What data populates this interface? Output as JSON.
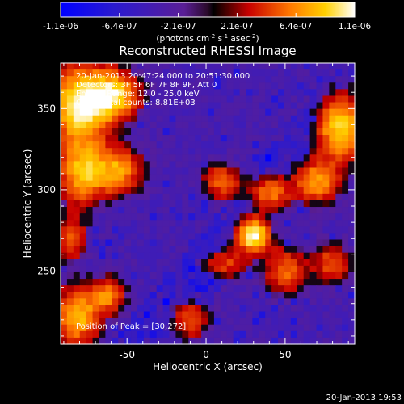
{
  "chart_data": {
    "type": "heatmap",
    "title": "Reconstructed RHESSI Image",
    "xlabel": "Heliocentric X (arcsec)",
    "ylabel": "Heliocentric Y (arcsec)",
    "xlim": [
      -92,
      94
    ],
    "ylim": [
      205,
      378
    ],
    "x_ticks": [
      -50,
      0,
      50
    ],
    "y_ticks": [
      250,
      300,
      350
    ],
    "colorbar": {
      "min": -1.1e-06,
      "max": 1.1e-06,
      "tick_labels": [
        "-1.1e-06",
        "-6.4e-07",
        "-2.1e-07",
        "2.1e-07",
        "6.4e-07",
        "1.1e-06"
      ],
      "unit_label_parts": [
        "(photons cm",
        "-2",
        " s",
        "-1",
        " asec",
        "-2",
        ")"
      ]
    },
    "info_lines": [
      "20-Jan-2013 20:47:24.000 to 20:51:30.000",
      "Detectors: 3F 5F 6F 7F 8F 9F, Att 0",
      "Energy Range: 12.0 - 25.0 keV",
      "Clean    Total counts: 8.81E+03"
    ],
    "peak_label": "Position of Peak = [30,272]",
    "peak_position": [
      30,
      272
    ],
    "footer_timestamp": "20-Jan-2013 19:53",
    "source_centers": [
      {
        "x": 30,
        "y": 272,
        "amp": 1.05,
        "sx": 7,
        "sy": 7
      },
      {
        "x": -80,
        "y": 352,
        "amp": 0.95,
        "sx": 13,
        "sy": 17
      },
      {
        "x": -58,
        "y": 358,
        "amp": 0.8,
        "sx": 11,
        "sy": 10
      },
      {
        "x": -78,
        "y": 310,
        "amp": 0.75,
        "sx": 10,
        "sy": 13
      },
      {
        "x": -55,
        "y": 312,
        "amp": 0.65,
        "sx": 10,
        "sy": 10
      },
      {
        "x": -82,
        "y": 222,
        "amp": 0.75,
        "sx": 10,
        "sy": 12
      },
      {
        "x": -62,
        "y": 235,
        "amp": 0.55,
        "sx": 8,
        "sy": 8
      },
      {
        "x": 85,
        "y": 338,
        "amp": 0.85,
        "sx": 10,
        "sy": 14
      },
      {
        "x": 70,
        "y": 305,
        "amp": 0.65,
        "sx": 10,
        "sy": 9
      },
      {
        "x": 40,
        "y": 298,
        "amp": 0.55,
        "sx": 9,
        "sy": 7
      },
      {
        "x": 10,
        "y": 305,
        "amp": 0.5,
        "sx": 8,
        "sy": 8
      },
      {
        "x": 50,
        "y": 250,
        "amp": 0.5,
        "sx": 10,
        "sy": 10
      },
      {
        "x": 12,
        "y": 255,
        "amp": 0.4,
        "sx": 9,
        "sy": 7
      },
      {
        "x": -10,
        "y": 220,
        "amp": 0.4,
        "sx": 9,
        "sy": 9
      },
      {
        "x": -85,
        "y": 270,
        "amp": 0.45,
        "sx": 7,
        "sy": 10
      },
      {
        "x": 80,
        "y": 255,
        "amp": 0.45,
        "sx": 8,
        "sy": 9
      }
    ]
  }
}
